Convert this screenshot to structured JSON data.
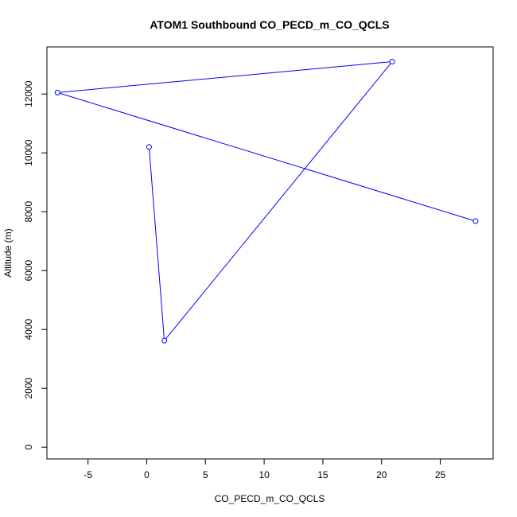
{
  "chart_data": {
    "type": "line",
    "title": "ATOM1 Southbound CO_PECD_m_CO_QCLS",
    "xlabel": "CO_PECD_m_CO_QCLS",
    "ylabel": "Altitude (m)",
    "xlim": [
      -8.5,
      29.5
    ],
    "ylim": [
      -400,
      13600
    ],
    "x_ticks": [
      -5,
      0,
      5,
      10,
      15,
      20,
      25
    ],
    "y_ticks": [
      0,
      2000,
      4000,
      6000,
      8000,
      10000,
      12000
    ],
    "grid": false,
    "series": [
      {
        "color": "#0000ff",
        "marker": "open-circle",
        "points": [
          {
            "x": 0.2,
            "y": 10200
          },
          {
            "x": 1.5,
            "y": 3620
          },
          {
            "x": 20.9,
            "y": 13100
          },
          {
            "x": -7.6,
            "y": 12050
          },
          {
            "x": 28.0,
            "y": 7680
          }
        ]
      }
    ]
  }
}
